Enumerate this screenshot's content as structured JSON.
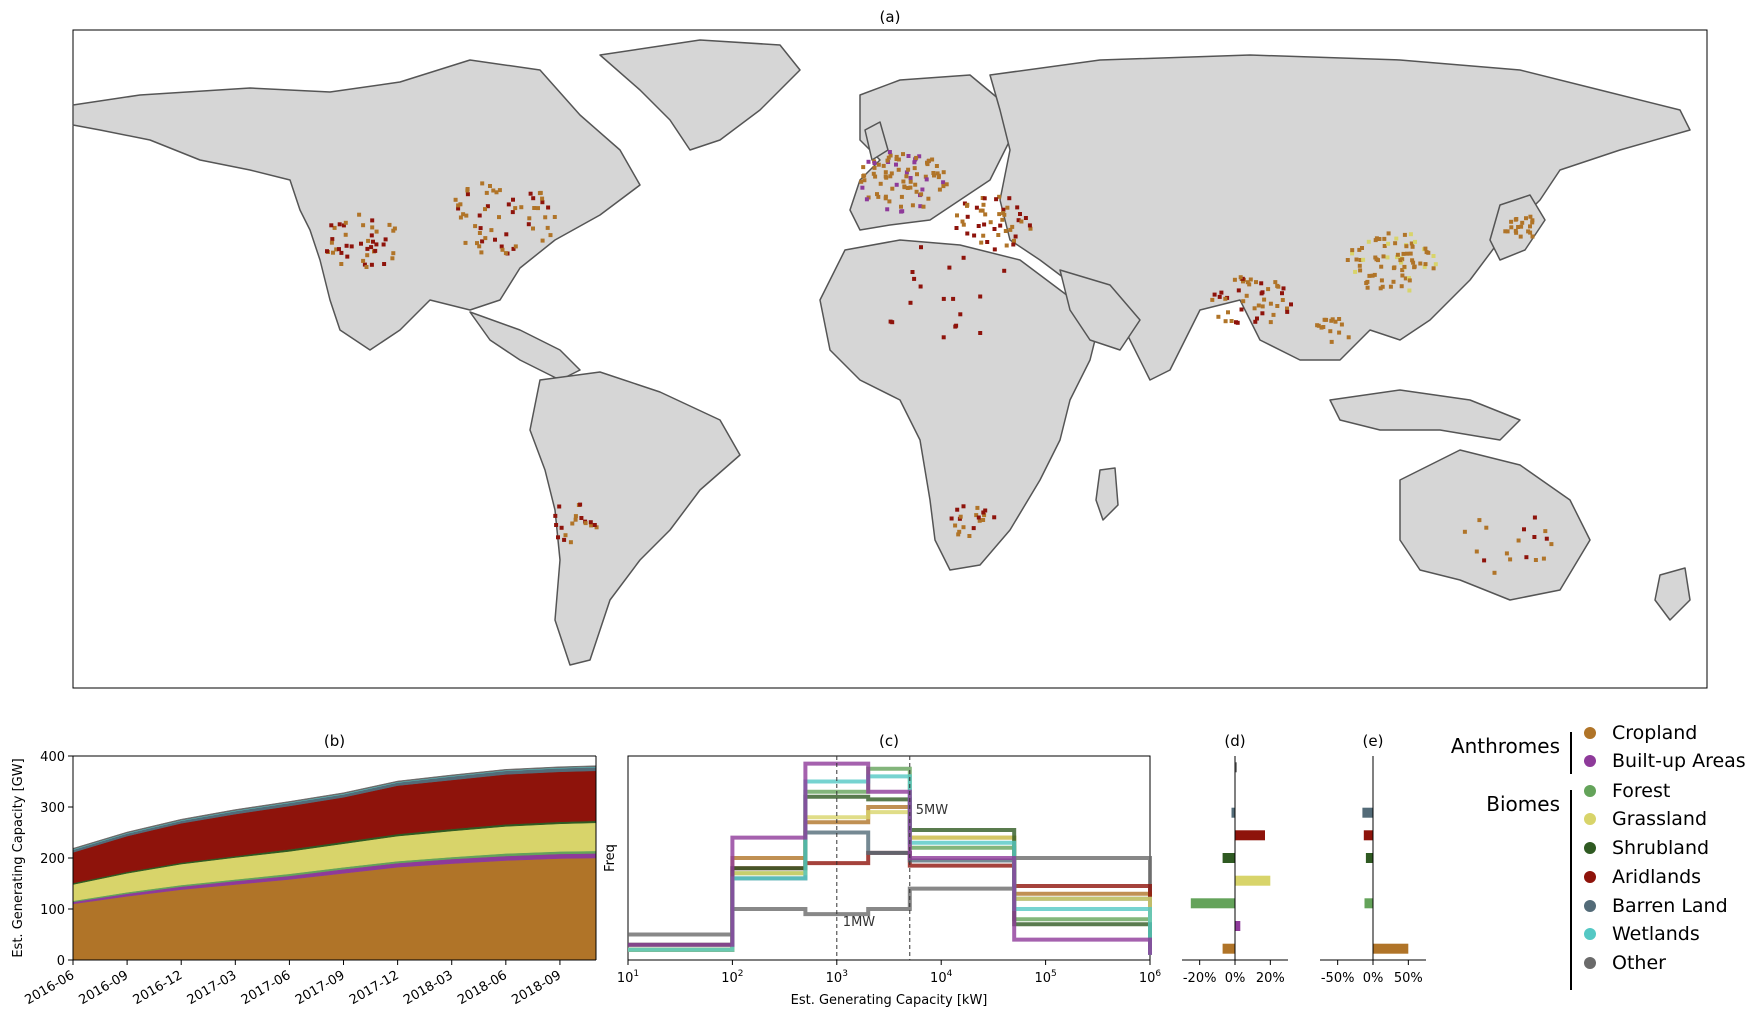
{
  "map": {
    "title": "(a)",
    "land_color": "#d6d6d6",
    "border_color": "#555555"
  },
  "chart_data": [
    {
      "id": "b",
      "type": "area",
      "title": "(b)",
      "xlabel": "",
      "ylabel": "Est. Generating Capacity [GW]",
      "x_ticks": [
        "2016-06",
        "2016-09",
        "2016-12",
        "2017-03",
        "2017-06",
        "2017-09",
        "2017-12",
        "2018-03",
        "2018-06",
        "2018-09"
      ],
      "x": [
        "2016-06",
        "2016-09",
        "2016-12",
        "2017-03",
        "2017-06",
        "2017-09",
        "2017-12",
        "2018-03",
        "2018-06",
        "2018-09",
        "2018-11"
      ],
      "ylim": [
        0,
        400
      ],
      "y_ticks": [
        0,
        100,
        200,
        300,
        400
      ],
      "stack_order": [
        "Cropland",
        "Built-up Areas",
        "Forest",
        "Grassland",
        "Shrubland",
        "Aridlands",
        "Barren Land",
        "Wetlands",
        "Other"
      ],
      "series": [
        {
          "name": "Cropland",
          "values": [
            110,
            125,
            138,
            148,
            158,
            170,
            182,
            189,
            195,
            199,
            200
          ]
        },
        {
          "name": "Built-up Areas",
          "values": [
            4,
            5,
            6,
            7,
            7,
            8,
            8,
            9,
            9,
            9,
            9
          ]
        },
        {
          "name": "Forest",
          "values": [
            2,
            3,
            3,
            3,
            4,
            4,
            4,
            4,
            5,
            5,
            5
          ]
        },
        {
          "name": "Grassland",
          "values": [
            32,
            37,
            41,
            43,
            44,
            46,
            49,
            51,
            53,
            54,
            55
          ]
        },
        {
          "name": "Shrubland",
          "values": [
            3,
            3,
            3,
            3,
            4,
            4,
            4,
            4,
            4,
            4,
            4
          ]
        },
        {
          "name": "Aridlands",
          "values": [
            60,
            70,
            77,
            82,
            85,
            87,
            95,
            96,
            98,
            98,
            98
          ]
        },
        {
          "name": "Barren Land",
          "values": [
            5,
            5,
            5,
            6,
            6,
            6,
            6,
            7,
            7,
            7,
            7
          ]
        },
        {
          "name": "Wetlands",
          "values": [
            1,
            1,
            1,
            1,
            1,
            1,
            1,
            1,
            1,
            1,
            1
          ]
        },
        {
          "name": "Other",
          "values": [
            2,
            2,
            2,
            2,
            2,
            2,
            2,
            2,
            2,
            2,
            2
          ]
        }
      ]
    },
    {
      "id": "c",
      "type": "line",
      "title": "(c)",
      "xlabel": "Est. Generating Capacity [kW]",
      "ylabel": "Freq",
      "x_scale": "log",
      "x_tick_exponents": [
        1,
        2,
        3,
        4,
        5,
        6
      ],
      "bin_edges": [
        10,
        100,
        500,
        2000,
        5000,
        50000,
        1000000
      ],
      "ylim": [
        0,
        0.4
      ],
      "annotations": [
        {
          "text": "1MW",
          "x": 1000
        },
        {
          "text": "5MW",
          "x": 5000
        }
      ],
      "series": [
        {
          "name": "Cropland",
          "values": [
            0.02,
            0.2,
            0.27,
            0.3,
            0.24,
            0.13,
            0.02
          ]
        },
        {
          "name": "Built-up Areas",
          "values": [
            0.03,
            0.24,
            0.385,
            0.33,
            0.2,
            0.04,
            0.01
          ]
        },
        {
          "name": "Forest",
          "values": [
            0.02,
            0.17,
            0.33,
            0.375,
            0.22,
            0.08,
            0.01
          ]
        },
        {
          "name": "Grassland",
          "values": [
            0.02,
            0.17,
            0.28,
            0.29,
            0.24,
            0.12,
            0.02
          ]
        },
        {
          "name": "Shrubland",
          "values": [
            0.03,
            0.18,
            0.32,
            0.315,
            0.255,
            0.07,
            0.02
          ]
        },
        {
          "name": "Aridlands",
          "values": [
            0.02,
            0.18,
            0.19,
            0.21,
            0.185,
            0.145,
            0.03
          ]
        },
        {
          "name": "Barren Land",
          "values": [
            0.02,
            0.16,
            0.25,
            0.21,
            0.195,
            0.12,
            0.02
          ]
        },
        {
          "name": "Wetlands",
          "values": [
            0.02,
            0.16,
            0.35,
            0.36,
            0.23,
            0.1,
            0.01
          ]
        },
        {
          "name": "Other",
          "values": [
            0.05,
            0.1,
            0.09,
            0.1,
            0.14,
            0.2,
            0.04
          ]
        }
      ]
    },
    {
      "id": "d",
      "type": "bar",
      "title": "(d)",
      "x_ticks": [
        "-20%",
        "0%",
        "20%"
      ],
      "xlim": [
        -30,
        30
      ],
      "categories": [
        "Other",
        "Wetlands",
        "Barren Land",
        "Aridlands",
        "Shrubland",
        "Grassland",
        "Forest",
        "Built-up Areas",
        "Cropland"
      ],
      "values": [
        1,
        0,
        -2,
        17,
        -7,
        20,
        -25,
        3,
        -7
      ]
    },
    {
      "id": "e",
      "type": "bar",
      "title": "(e)",
      "x_ticks": [
        "-50%",
        "0%",
        "50%"
      ],
      "xlim": [
        -75,
        75
      ],
      "categories": [
        "Other",
        "Wetlands",
        "Barren Land",
        "Aridlands",
        "Shrubland",
        "Grassland",
        "Forest",
        "Built-up Areas",
        "Cropland"
      ],
      "values": [
        0,
        0,
        -15,
        -13,
        -10,
        0,
        -12,
        0,
        50
      ]
    }
  ],
  "legend": {
    "anthromes_title": "Anthromes",
    "biomes_title": "Biomes",
    "anthromes": [
      {
        "name": "Cropland",
        "color": "#b07428"
      },
      {
        "name": "Built-up Areas",
        "color": "#8e3a9a"
      }
    ],
    "biomes": [
      {
        "name": "Forest",
        "color": "#64a35a"
      },
      {
        "name": "Grassland",
        "color": "#d8d46a"
      },
      {
        "name": "Shrubland",
        "color": "#2f5a22"
      },
      {
        "name": "Aridlands",
        "color": "#8e130b"
      },
      {
        "name": "Barren Land",
        "color": "#536b78"
      },
      {
        "name": "Wetlands",
        "color": "#54c8c4"
      },
      {
        "name": "Other",
        "color": "#6a6a6a"
      }
    ]
  }
}
